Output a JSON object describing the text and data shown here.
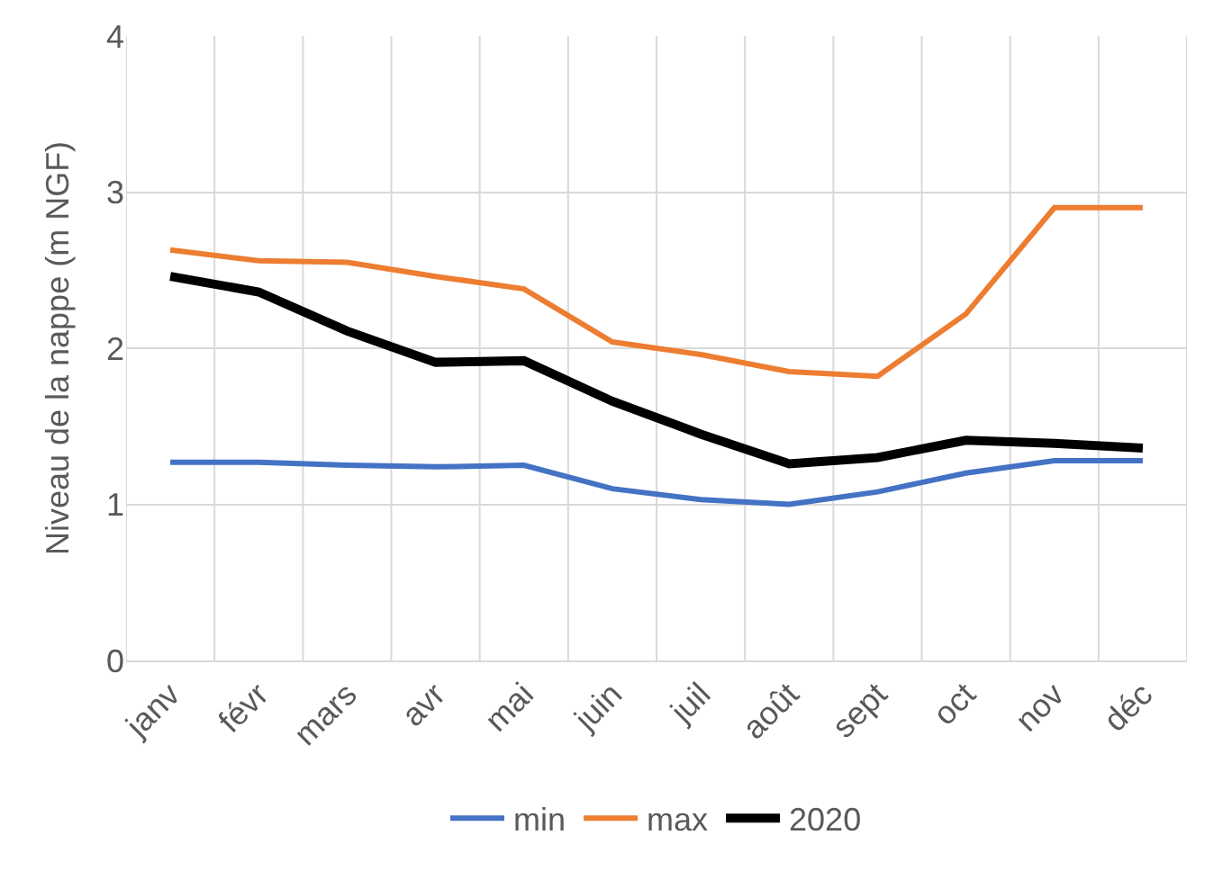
{
  "chart_data": {
    "type": "line",
    "ylabel": "Niveau de la nappe (m NGF)",
    "categories": [
      "janv",
      "févr",
      "mars",
      "avr",
      "mai",
      "juin",
      "juil",
      "août",
      "sept",
      "oct",
      "nov",
      "déc"
    ],
    "series": [
      {
        "name": "min",
        "color": "#4472c4",
        "values": [
          1.27,
          1.27,
          1.25,
          1.24,
          1.25,
          1.1,
          1.03,
          1.0,
          1.08,
          1.2,
          1.28,
          1.28
        ]
      },
      {
        "name": "max",
        "color": "#ed7d31",
        "values": [
          2.63,
          2.56,
          2.55,
          2.46,
          2.38,
          2.04,
          1.96,
          1.85,
          1.82,
          2.22,
          2.9,
          2.9
        ]
      },
      {
        "name": "2020",
        "color": "#000000",
        "values": [
          2.46,
          2.36,
          2.11,
          1.91,
          1.92,
          1.66,
          1.45,
          1.26,
          1.3,
          1.41,
          1.39,
          1.36
        ]
      }
    ],
    "ylim": [
      0,
      4
    ],
    "yticks": [
      0,
      1,
      2,
      3,
      4
    ],
    "grid": true,
    "legend": "bottom",
    "marker": "none",
    "line_style": "solid"
  }
}
